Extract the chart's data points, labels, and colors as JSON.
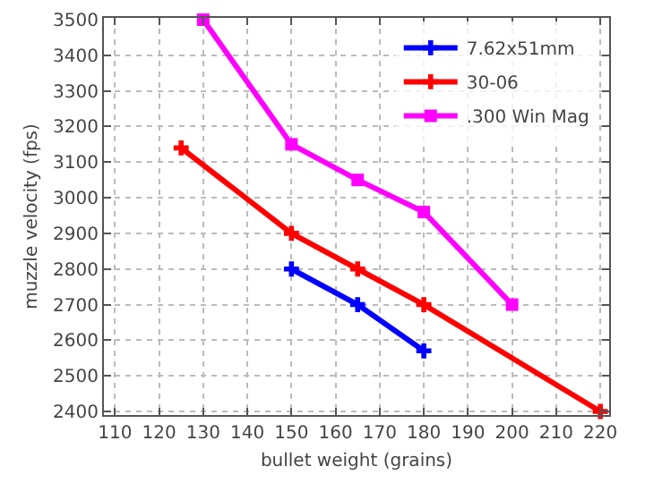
{
  "chart_data": {
    "type": "line",
    "xlabel": "bullet weight (grains)",
    "ylabel": "muzzle velocity (fps)",
    "xlim": [
      107.5,
      222
    ],
    "xticks": [
      110,
      120,
      130,
      140,
      150,
      160,
      170,
      180,
      190,
      200,
      210,
      220
    ],
    "ylim": [
      2390,
      3505
    ],
    "yticks": [
      2400,
      2500,
      2600,
      2700,
      2800,
      2900,
      3000,
      3100,
      3200,
      3300,
      3400,
      3500
    ],
    "grid": true,
    "legend": "top right",
    "line_style": "solid",
    "series": [
      {
        "name": "7.62x51mm",
        "color": "#0000ff",
        "marker": "cross",
        "x": [
          150,
          165,
          180
        ],
        "values": [
          2800,
          2700,
          2570
        ]
      },
      {
        "name": "30-06",
        "color": "#ff0000",
        "marker": "cross",
        "x": [
          125,
          150,
          165,
          180,
          220
        ],
        "values": [
          3140,
          2900,
          2800,
          2700,
          2400
        ]
      },
      {
        "name": ".300 Win Mag",
        "color": "#ff00ff",
        "marker": "square",
        "x": [
          130,
          150,
          165,
          180,
          200
        ],
        "values": [
          3500,
          3150,
          3050,
          2960,
          2700
        ]
      }
    ]
  }
}
